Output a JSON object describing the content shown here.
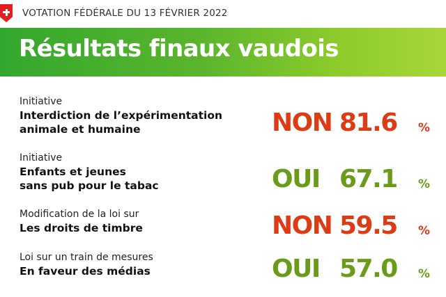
{
  "header": {
    "vote_date": "VOTATION FÉDÉRALE DU 13 FÉVRIER 2022",
    "title": "Résultats finaux vaudois"
  },
  "colors": {
    "no": "#dd3b14",
    "yes": "#6a9b1a",
    "banner_start": "#33a82e",
    "banner_end": "#a9d63a"
  },
  "results": [
    {
      "type": "Initiative",
      "name_line1": "Interdiction de l’expérimentation",
      "name_line2": "animale et humaine",
      "answer": "NON",
      "percent": "81.6",
      "unit": "%"
    },
    {
      "type": "Initiative",
      "name_line1": "Enfants et jeunes",
      "name_line2": "sans pub pour le tabac",
      "answer": "OUI",
      "percent": "67.1",
      "unit": "%"
    },
    {
      "type": "Modification de la loi sur",
      "name_line1": "Les droits de timbre",
      "name_line2": "",
      "answer": "NON",
      "percent": "59.5",
      "unit": "%"
    },
    {
      "type": "Loi sur un train de mesures",
      "name_line1": "En faveur des médias",
      "name_line2": "",
      "answer": "OUI",
      "percent": "57.0",
      "unit": "%"
    }
  ]
}
